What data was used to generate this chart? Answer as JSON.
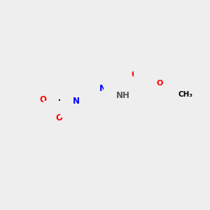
{
  "bg_color": "#eeeeee",
  "atom_colors": {
    "C": "#000000",
    "N": "#0000ff",
    "O": "#ff0000",
    "S": "#cccc00",
    "F": "#ff00ff",
    "H": "#555555"
  },
  "bond_color": "#000000",
  "bond_width": 1.5,
  "font_size": 9
}
